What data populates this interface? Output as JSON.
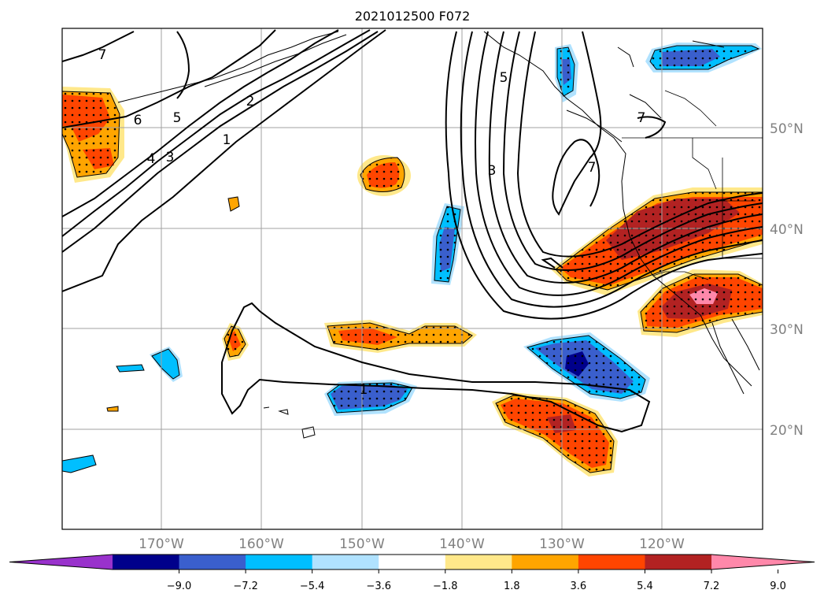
{
  "title": "2021012500 F072",
  "lat_labels": [
    "50°N",
    "40°N",
    "30°N",
    "20°N"
  ],
  "lon_labels": [
    "170°W",
    "160°W",
    "150°W",
    "140°W",
    "130°W",
    "120°W"
  ],
  "colorbar": {
    "labels": [
      "-9.0",
      "-7.2",
      "-5.4",
      "-3.6",
      "-1.8",
      "1.8",
      "3.6",
      "5.4",
      "7.2",
      "9.0"
    ],
    "colors": [
      "#9932cc",
      "#00008b",
      "#3a5fcd",
      "#00bfff",
      "#b0e2ff",
      "#ffffff",
      "#ffe88a",
      "#ffa500",
      "#ff4500",
      "#b22222",
      "#ff88aa"
    ]
  },
  "contour_labels": [
    "7",
    "6",
    "5",
    "4",
    "3",
    "2",
    "1",
    "5",
    "3",
    "7",
    "7",
    "1"
  ],
  "colors": {
    "contour": "#000000",
    "grid": "#a0a0a0",
    "coast": "#000000",
    "label_gray": "#808080"
  }
}
